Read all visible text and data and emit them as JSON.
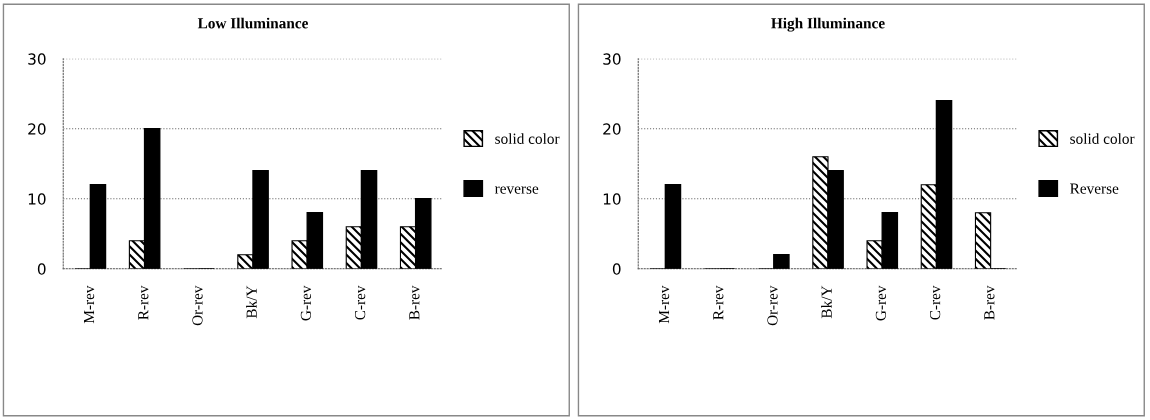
{
  "chart_data": [
    {
      "type": "bar",
      "title": "Low Illuminance",
      "categories": [
        "M-rev",
        "R-rev",
        "Or-rev",
        "Bk/Y",
        "G-rev",
        "C-rev",
        "B-rev"
      ],
      "series": [
        {
          "name": "solid color",
          "color": "#000000",
          "values": [
            0,
            4,
            0,
            2,
            4,
            6,
            6
          ]
        },
        {
          "name": "reverse",
          "color": "#000000",
          "values": [
            12,
            20,
            0,
            14,
            8,
            14,
            10
          ]
        }
      ],
      "ylim": [
        0,
        30
      ],
      "yticks": [
        0,
        10,
        20,
        30
      ],
      "grid": "y",
      "legend": "right"
    },
    {
      "type": "bar",
      "title": "High Illuminance",
      "categories": [
        "M-rev",
        "R-rev",
        "Or-rev",
        "Bk/Y",
        "G-rev",
        "C-rev",
        "B-rev"
      ],
      "series": [
        {
          "name": "solid color",
          "color": "#000000",
          "values": [
            0,
            0,
            0,
            16,
            4,
            12,
            8
          ]
        },
        {
          "name": "Reverse",
          "color": "#000000",
          "values": [
            12,
            0,
            2,
            14,
            8,
            24,
            0
          ]
        }
      ],
      "ylim": [
        0,
        30
      ],
      "yticks": [
        0,
        10,
        20,
        30
      ],
      "grid": "y",
      "legend": "right"
    }
  ]
}
